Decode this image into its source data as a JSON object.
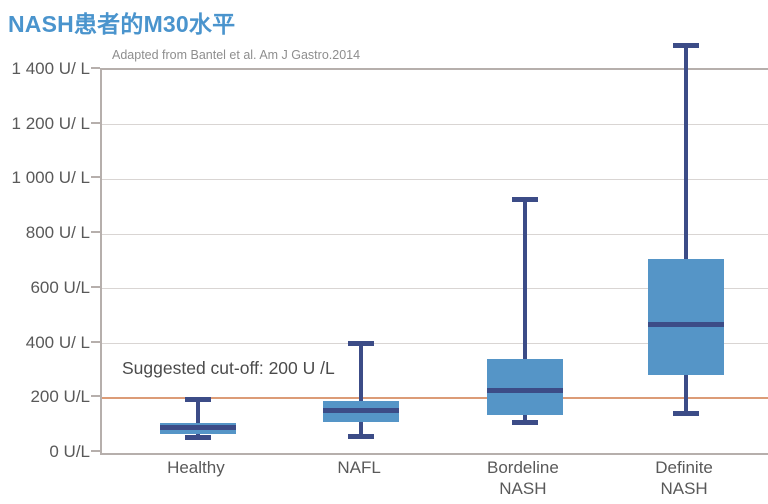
{
  "page": {
    "title": "NASH患者的M30水平",
    "source_note": "Adapted from Bantel et al. Am J Gastro.2014"
  },
  "chart_data": {
    "type": "boxplot",
    "title": "NASH患者的M30水平",
    "subtitle": "Adapted from Bantel et al. Am J Gastro.2014",
    "y_unit": "U/L",
    "ylim": [
      0,
      1400
    ],
    "ytick_interval": 200,
    "grid": true,
    "legend": false,
    "yticks": [
      {
        "value": 1400,
        "label": "1 400 U/ L"
      },
      {
        "value": 1200,
        "label": "1 200 U/ L"
      },
      {
        "value": 1000,
        "label": "1 000 U/ L"
      },
      {
        "value": 800,
        "label": "800 U/ L"
      },
      {
        "value": 600,
        "label": "600 U/L"
      },
      {
        "value": 400,
        "label": "400 U/ L"
      },
      {
        "value": 200,
        "label": "200 U/L"
      },
      {
        "value": 0,
        "label": "0 U/L"
      }
    ],
    "categories": [
      "Healthy",
      "NAFL",
      "Bordeline NASH",
      "Definite NASH"
    ],
    "series": [
      {
        "name": "Healthy",
        "whisker_low": 55,
        "q1": 70,
        "median": 95,
        "q3": 110,
        "whisker_high": 195
      },
      {
        "name": "NAFL",
        "whisker_low": 60,
        "q1": 115,
        "median": 155,
        "q3": 190,
        "whisker_high": 400
      },
      {
        "name": "Bordeline NASH",
        "whisker_low": 110,
        "q1": 140,
        "median": 230,
        "q3": 345,
        "whisker_high": 925
      },
      {
        "name": "Definite NASH",
        "whisker_low": 145,
        "q1": 285,
        "median": 470,
        "q3": 710,
        "whisker_high": 1490
      }
    ],
    "cutoff": {
      "value": 200,
      "label": "Suggested cut-off: 200 U /L"
    },
    "colors": {
      "title": "#4a94cd",
      "box_fill": "#5595c7",
      "box_line": "#3c4c87",
      "cutoff_line": "#dc9c77",
      "gridline": "#d9d5d3",
      "axis_border": "#b6afac",
      "axis_text": "#595959"
    }
  }
}
